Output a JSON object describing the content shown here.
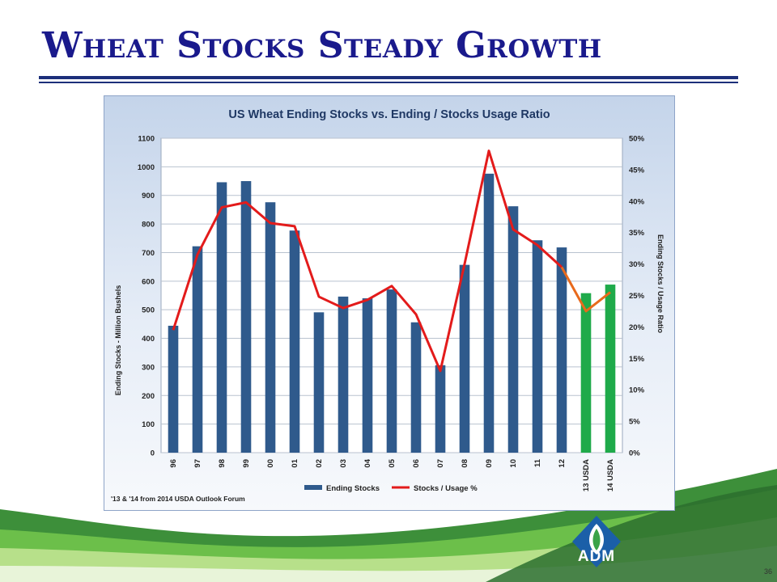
{
  "slide": {
    "title": "Wheat Stocks Steady Growth",
    "page_number": "36"
  },
  "logo": {
    "text": "ADM"
  },
  "colors": {
    "title": "#1a1a8c",
    "bar_history": "#2f5a8c",
    "bar_forecast": "#1faa4a",
    "line_history": "#e31b1b",
    "line_forecast": "#e86a1c"
  },
  "chart_data": {
    "type": "bar",
    "title": "US Wheat Ending Stocks vs. Ending / Stocks Usage Ratio",
    "ylabel": "Ending Stocks - Million Bushels",
    "y2label": "Ending Stocks / Usage Ratio",
    "ylim": [
      0,
      1100
    ],
    "y2lim": [
      0,
      50
    ],
    "yticks": [
      "0",
      "100",
      "200",
      "300",
      "400",
      "500",
      "600",
      "700",
      "800",
      "900",
      "1000",
      "1100"
    ],
    "y2ticks": [
      "0%",
      "5%",
      "10%",
      "15%",
      "20%",
      "25%",
      "30%",
      "35%",
      "40%",
      "45%",
      "50%"
    ],
    "categories": [
      "96",
      "97",
      "98",
      "99",
      "00",
      "01",
      "02",
      "03",
      "04",
      "05",
      "06",
      "07",
      "08",
      "09",
      "10",
      "11",
      "12",
      "13 USDA",
      "14 USDA"
    ],
    "series": [
      {
        "name": "Ending Stocks",
        "type": "bar",
        "axis": "left",
        "values": [
          444,
          722,
          946,
          950,
          876,
          777,
          491,
          546,
          540,
          571,
          456,
          306,
          657,
          976,
          862,
          743,
          718,
          558,
          588
        ],
        "forecast_from_index": 17
      },
      {
        "name": "Stocks / Usage %",
        "type": "line",
        "axis": "right",
        "values": [
          19.5,
          31.5,
          39.0,
          39.8,
          36.5,
          36.0,
          24.8,
          23.0,
          24.3,
          26.5,
          22.0,
          13.0,
          30.0,
          48.0,
          35.5,
          33.0,
          29.5,
          22.5,
          25.5
        ],
        "forecast_from_index": 16
      }
    ],
    "legend_position": "bottom",
    "grid": true,
    "footnote": "'13 & '14 from 2014 USDA Outlook Forum"
  }
}
